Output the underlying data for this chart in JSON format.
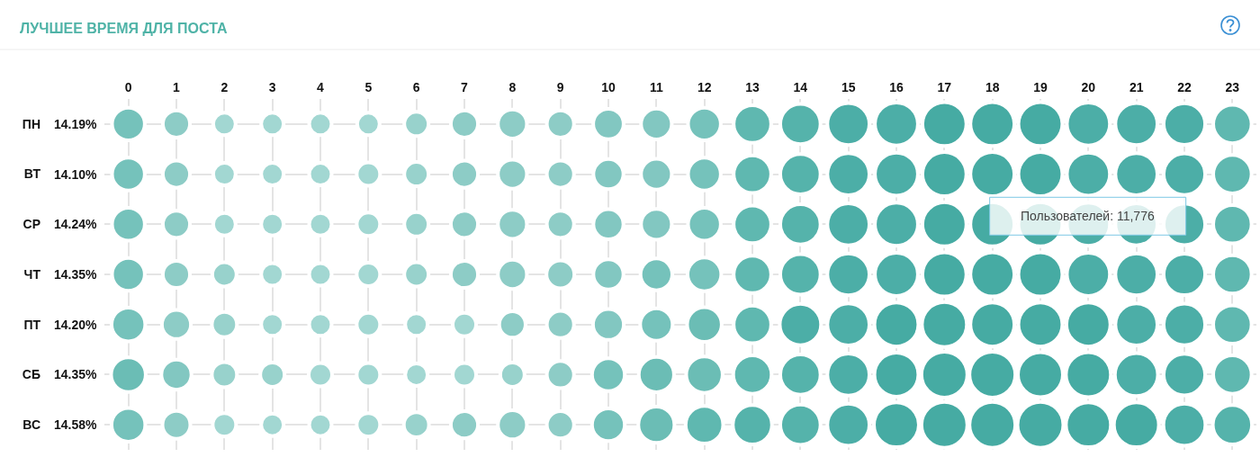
{
  "chart_data": {
    "type": "bubble",
    "title": "ЛУЧШЕЕ ВРЕМЯ ДЛЯ ПОСТА",
    "orientation": "horizontal",
    "categories": [
      "ПН",
      "ВТ",
      "СР",
      "ЧТ",
      "ПТ",
      "СБ",
      "ВС"
    ],
    "y2_categories": [
      "14.19%",
      "14.10%",
      "14.24%",
      "14.35%",
      "14.20%",
      "14.35%",
      "14.58%"
    ],
    "xlim": [
      -0.5,
      23.5
    ],
    "xticks": [
      0,
      1,
      2,
      3,
      4,
      5,
      6,
      7,
      8,
      9,
      10,
      11,
      12,
      13,
      14,
      15,
      16,
      17,
      18,
      19,
      20,
      21,
      22,
      23
    ],
    "series": [
      {
        "values": [
          0,
          0,
          0,
          0,
          0,
          0,
          0
        ],
        "sizes": [
          0.51,
          0.51,
          0.51,
          0.51,
          0.54,
          0.57,
          0.54
        ],
        "colors": [
          "#75c2bb",
          "#75c2bb",
          "#75c2bb",
          "#75c2bb",
          "#75c2bb",
          "#6bbdb5",
          "#75c2bb"
        ]
      },
      {
        "values": [
          1,
          1,
          1,
          1,
          1,
          1,
          1
        ],
        "sizes": [
          0.35,
          0.35,
          0.35,
          0.35,
          0.4,
          0.43,
          0.37
        ],
        "colors": [
          "#8dccc6",
          "#8dccc6",
          "#8dccc6",
          "#8dccc6",
          "#8dccc6",
          "#82c7c1",
          "#8dccc6"
        ]
      },
      {
        "values": [
          2,
          2,
          2,
          2,
          2,
          2,
          2
        ],
        "sizes": [
          0.24,
          0.24,
          0.24,
          0.28,
          0.3,
          0.3,
          0.26
        ],
        "colors": [
          "#a2d7d2",
          "#a2d7d2",
          "#a2d7d2",
          "#98d2cc",
          "#98d2cc",
          "#98d2cc",
          "#a2d7d2"
        ]
      },
      {
        "values": [
          3,
          3,
          3,
          3,
          3,
          3,
          3
        ],
        "sizes": [
          0.24,
          0.24,
          0.24,
          0.24,
          0.24,
          0.28,
          0.24
        ],
        "colors": [
          "#a2d7d2",
          "#a2d7d2",
          "#a2d7d2",
          "#a2d7d2",
          "#a2d7d2",
          "#98d2cc",
          "#a2d7d2"
        ]
      },
      {
        "values": [
          4,
          4,
          4,
          4,
          4,
          4,
          4
        ],
        "sizes": [
          0.24,
          0.24,
          0.24,
          0.24,
          0.24,
          0.26,
          0.24
        ],
        "color": "#a2d7d2"
      },
      {
        "values": [
          5,
          5,
          5,
          5,
          5,
          5,
          5
        ],
        "sizes": [
          0.24,
          0.26,
          0.26,
          0.26,
          0.26,
          0.26,
          0.26
        ],
        "color": "#a2d7d2"
      },
      {
        "values": [
          6,
          6,
          6,
          6,
          6,
          6,
          6
        ],
        "sizes": [
          0.28,
          0.28,
          0.28,
          0.28,
          0.24,
          0.24,
          0.3
        ],
        "colors": [
          "#98d2cc",
          "#98d2cc",
          "#98d2cc",
          "#98d2cc",
          "#a2d7d2",
          "#a2d7d2",
          "#98d2cc"
        ]
      },
      {
        "values": [
          7,
          7,
          7,
          7,
          7,
          7,
          7
        ],
        "sizes": [
          0.35,
          0.35,
          0.35,
          0.35,
          0.26,
          0.26,
          0.35
        ],
        "colors": [
          "#8dccc6",
          "#8dccc6",
          "#8dccc6",
          "#8dccc6",
          "#a2d7d2",
          "#a2d7d2",
          "#8dccc6"
        ]
      },
      {
        "values": [
          8,
          8,
          8,
          8,
          8,
          8,
          8
        ],
        "sizes": [
          0.4,
          0.4,
          0.4,
          0.4,
          0.33,
          0.28,
          0.4
        ],
        "colors": [
          "#8dccc6",
          "#8dccc6",
          "#8dccc6",
          "#8dccc6",
          "#8dccc6",
          "#98d2cc",
          "#8dccc6"
        ]
      },
      {
        "values": [
          9,
          9,
          9,
          9,
          9,
          9,
          9
        ],
        "sizes": [
          0.35,
          0.35,
          0.35,
          0.37,
          0.35,
          0.35,
          0.35
        ],
        "color": "#8dccc6"
      },
      {
        "values": [
          10,
          10,
          10,
          10,
          10,
          10,
          10
        ],
        "sizes": [
          0.44,
          0.43,
          0.43,
          0.43,
          0.45,
          0.51,
          0.51
        ],
        "colors": [
          "#82c7c1",
          "#82c7c1",
          "#82c7c1",
          "#82c7c1",
          "#82c7c1",
          "#75c2bb",
          "#75c2bb"
        ]
      },
      {
        "values": [
          11,
          11,
          11,
          11,
          11,
          11,
          11
        ],
        "sizes": [
          0.45,
          0.45,
          0.45,
          0.48,
          0.5,
          0.59,
          0.62
        ],
        "colors": [
          "#82c7c1",
          "#82c7c1",
          "#82c7c1",
          "#75c2bb",
          "#75c2bb",
          "#6bbdb5",
          "#6bbdb5"
        ]
      },
      {
        "values": [
          12,
          12,
          12,
          12,
          12,
          12,
          12
        ],
        "sizes": [
          0.51,
          0.51,
          0.51,
          0.54,
          0.57,
          0.63,
          0.67
        ],
        "colors": [
          "#75c2bb",
          "#75c2bb",
          "#75c2bb",
          "#75c2bb",
          "#6bbdb5",
          "#6bbdb5",
          "#5fb8b0"
        ]
      },
      {
        "values": [
          13,
          13,
          13,
          13,
          13,
          13,
          13
        ],
        "sizes": [
          0.67,
          0.67,
          0.67,
          0.67,
          0.67,
          0.7,
          0.73
        ],
        "colors": [
          "#5fb8b0",
          "#5fb8b0",
          "#5fb8b0",
          "#5fb8b0",
          "#5fb8b0",
          "#5fb8b0",
          "#55b3ab"
        ]
      },
      {
        "values": [
          14,
          14,
          14,
          14,
          14,
          14,
          14
        ],
        "sizes": [
          0.77,
          0.77,
          0.77,
          0.77,
          0.81,
          0.77,
          0.77
        ],
        "colors": [
          "#55b3ab",
          "#55b3ab",
          "#55b3ab",
          "#55b3ab",
          "#4caea7",
          "#55b3ab",
          "#55b3ab"
        ]
      },
      {
        "values": [
          15,
          15,
          15,
          15,
          15,
          15,
          15
        ],
        "sizes": [
          0.84,
          0.84,
          0.84,
          0.84,
          0.84,
          0.84,
          0.84
        ],
        "color": "#4caea7"
      },
      {
        "values": [
          16,
          16,
          16,
          16,
          16,
          16,
          16
        ],
        "sizes": [
          0.88,
          0.88,
          0.88,
          0.88,
          0.92,
          0.92,
          0.96
        ],
        "colors": [
          "#4caea7",
          "#4caea7",
          "#4caea7",
          "#4caea7",
          "#46aba3",
          "#46aba3",
          "#46aba3"
        ]
      },
      {
        "values": [
          17,
          17,
          17,
          17,
          17,
          17,
          17
        ],
        "sizes": [
          0.92,
          0.92,
          0.92,
          0.92,
          0.96,
          1.0,
          1.0
        ],
        "color": "#46aba3"
      },
      {
        "values": [
          18,
          18,
          18,
          18,
          18,
          18,
          18
        ],
        "sizes": [
          0.92,
          0.92,
          0.92,
          0.92,
          0.92,
          1.0,
          1.0
        ],
        "color": "#46aba3"
      },
      {
        "values": [
          19,
          19,
          19,
          19,
          19,
          19,
          19
        ],
        "sizes": [
          0.92,
          0.92,
          0.92,
          0.92,
          0.92,
          0.96,
          1.0
        ],
        "color": "#46aba3"
      },
      {
        "values": [
          20,
          20,
          20,
          20,
          20,
          20,
          20
        ],
        "sizes": [
          0.88,
          0.88,
          0.88,
          0.88,
          0.92,
          0.96,
          0.96
        ],
        "colors": [
          "#4caea7",
          "#4caea7",
          "#4caea7",
          "#4caea7",
          "#46aba3",
          "#46aba3",
          "#46aba3"
        ]
      },
      {
        "values": [
          21,
          21,
          21,
          21,
          21,
          21,
          21
        ],
        "sizes": [
          0.84,
          0.84,
          0.84,
          0.84,
          0.84,
          0.88,
          0.96
        ],
        "colors": [
          "#4caea7",
          "#4caea7",
          "#4caea7",
          "#4caea7",
          "#4caea7",
          "#4caea7",
          "#46aba3"
        ]
      },
      {
        "values": [
          22,
          22,
          22,
          22,
          22,
          22,
          22
        ],
        "sizes": [
          0.82,
          0.82,
          0.82,
          0.82,
          0.82,
          0.82,
          0.84
        ],
        "color": "#4caea7"
      },
      {
        "values": [
          23,
          23,
          23,
          23,
          23,
          23,
          23
        ],
        "sizes": [
          0.7,
          0.7,
          0.7,
          0.7,
          0.7,
          0.7,
          0.73
        ],
        "colors": [
          "#5fb8b0",
          "#5fb8b0",
          "#5fb8b0",
          "#5fb8b0",
          "#5fb8b0",
          "#5fb8b0",
          "#55b3ab"
        ]
      }
    ],
    "annotations": [
      {
        "text": "Пользователей: 11,776",
        "x": 18,
        "y": "СР"
      }
    ],
    "grid": true,
    "marker": "circle"
  }
}
